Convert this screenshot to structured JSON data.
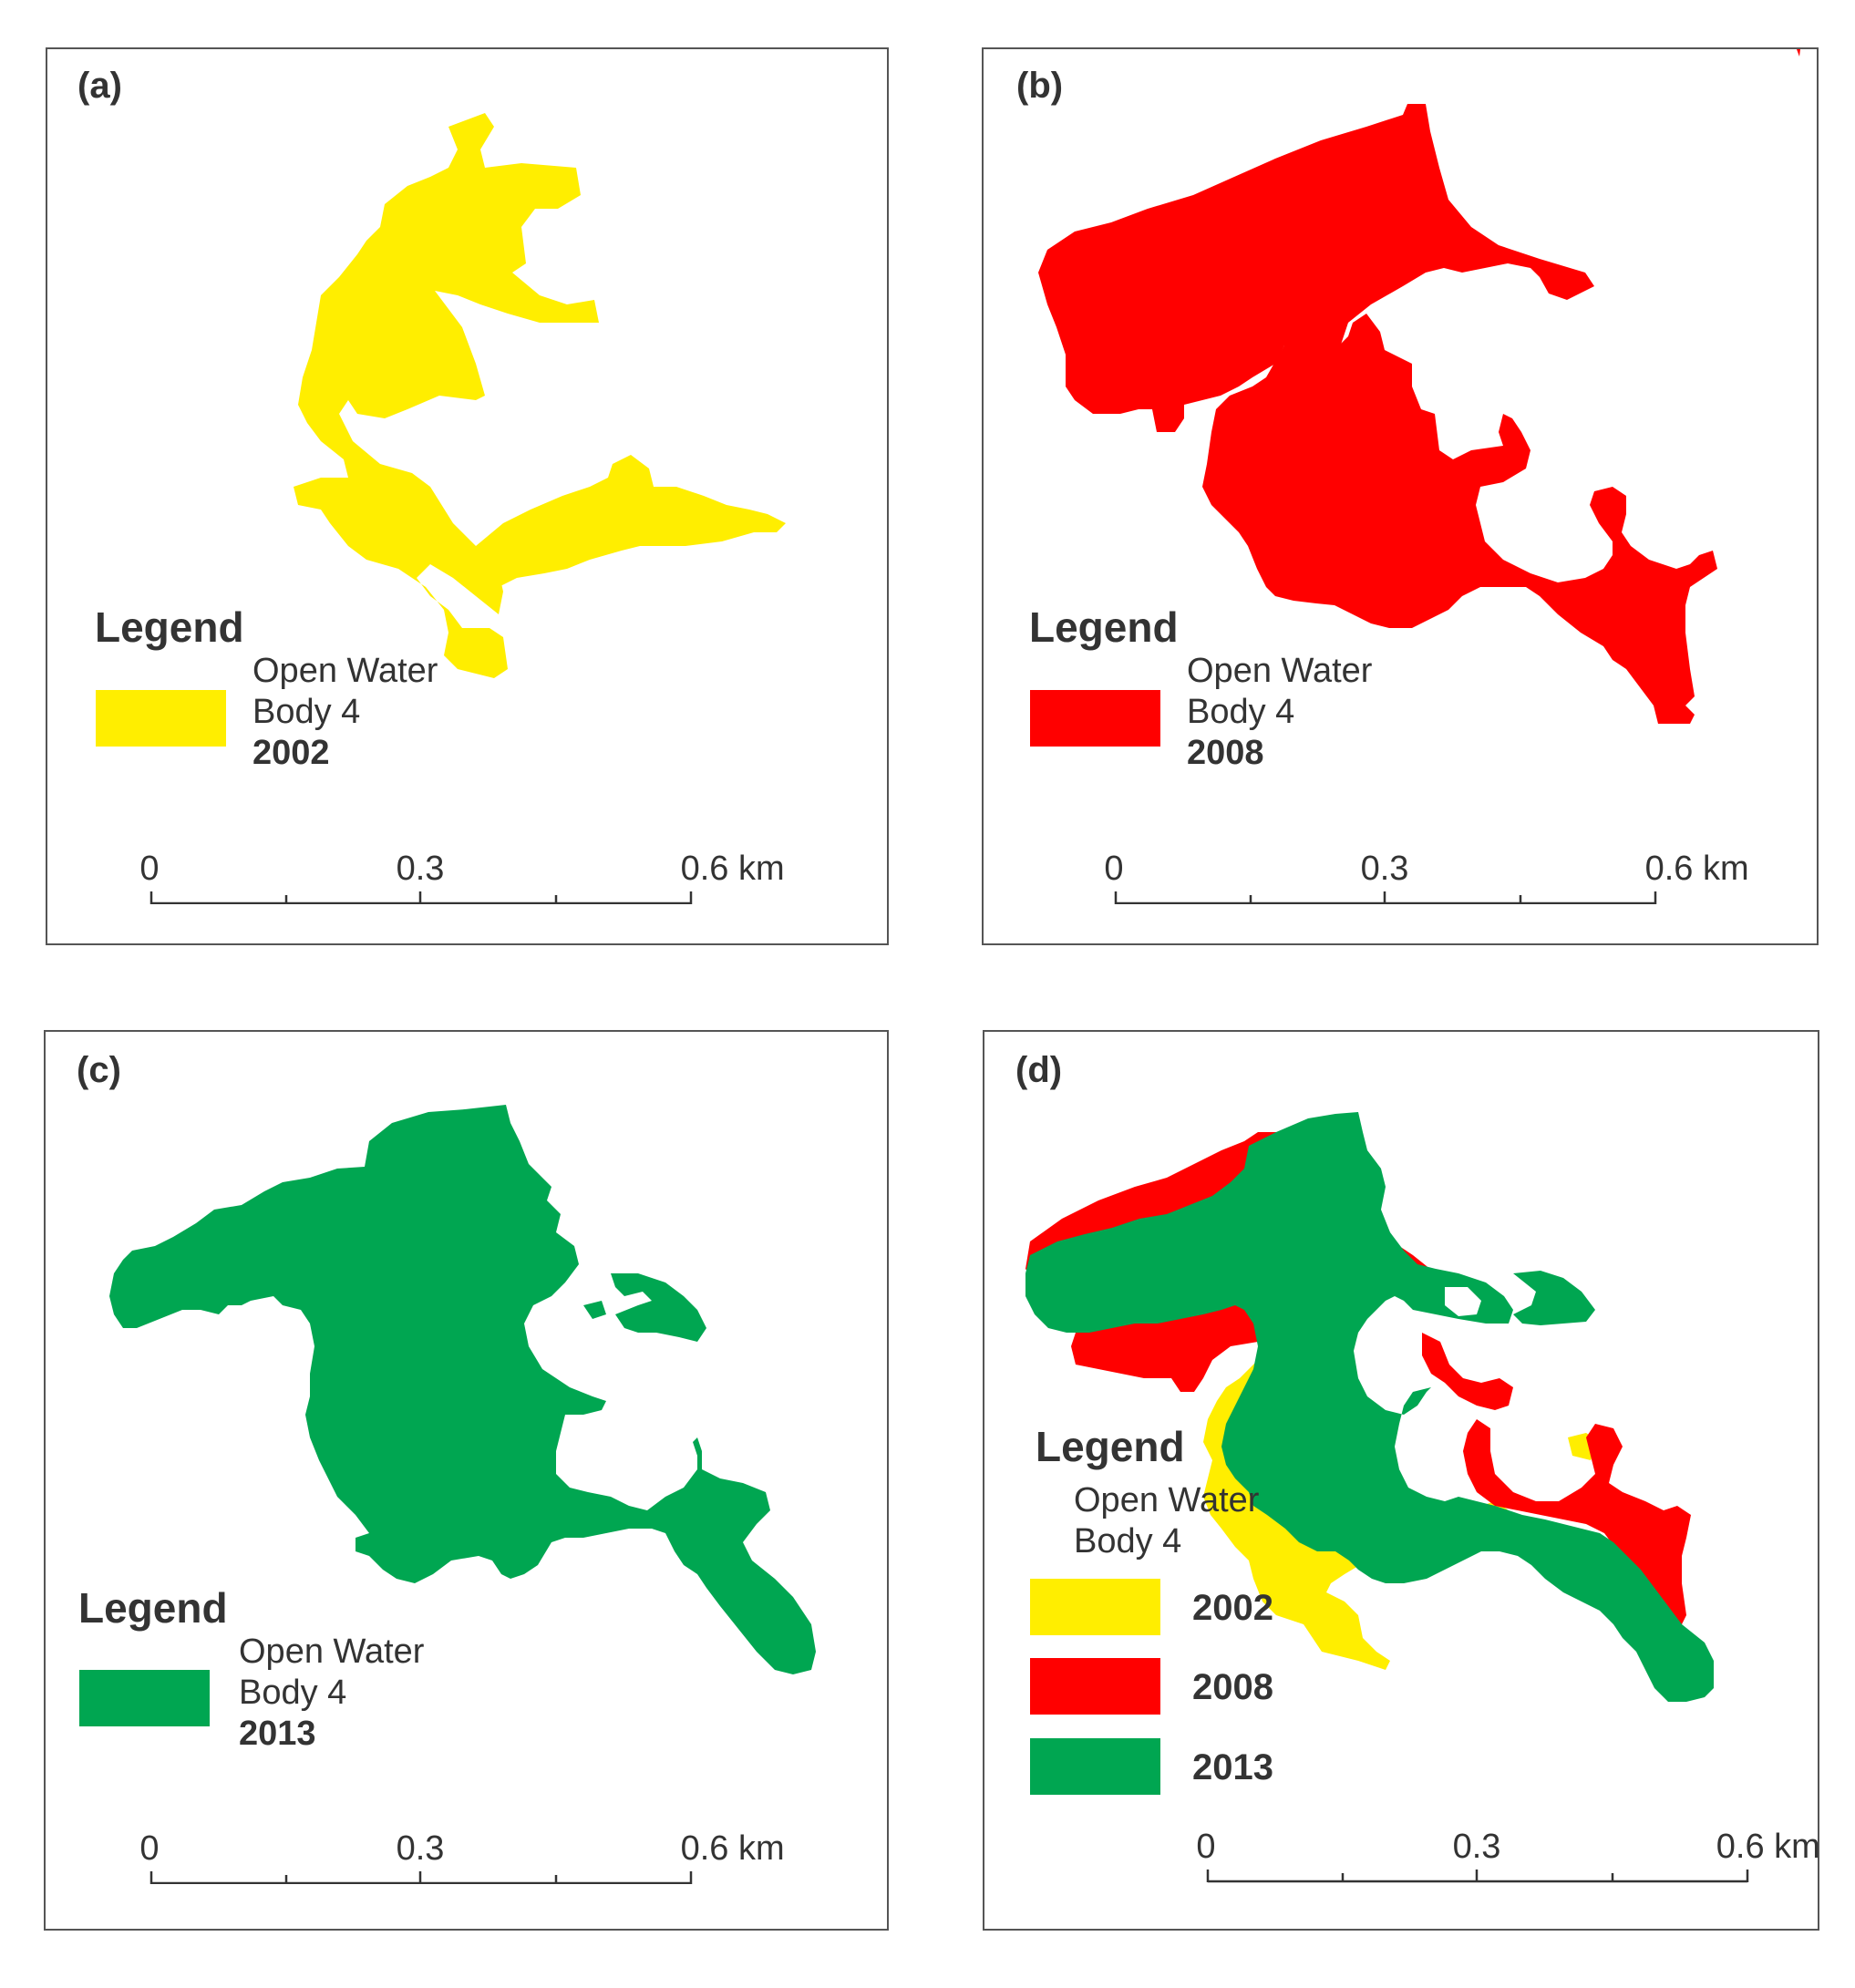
{
  "colors": {
    "y2002": "#ffee00",
    "y2008": "#ff0000",
    "y2013": "#00a651",
    "frame": "#555555",
    "text": "#333333"
  },
  "panels": {
    "a": {
      "label": "(a)",
      "legend_title": "Legend",
      "legend_line1": "Open Water",
      "legend_line2": "Body 4",
      "year": "2002",
      "color": "yellow"
    },
    "b": {
      "label": "(b)",
      "legend_title": "Legend",
      "legend_line1": "Open Water",
      "legend_line2": "Body 4",
      "year": "2008",
      "color": "red"
    },
    "c": {
      "label": "(c)",
      "legend_title": "Legend",
      "legend_line1": "Open Water",
      "legend_line2": "Body 4",
      "year": "2013",
      "color": "green"
    },
    "d": {
      "label": "(d)",
      "legend_title": "Legend",
      "legend_line1": "Open Water",
      "legend_line2": "Body 4",
      "years": [
        "2002",
        "2008",
        "2013"
      ]
    }
  },
  "scale": {
    "tick0": "0",
    "tick1": "0.3",
    "tick2": "0.6 km"
  }
}
